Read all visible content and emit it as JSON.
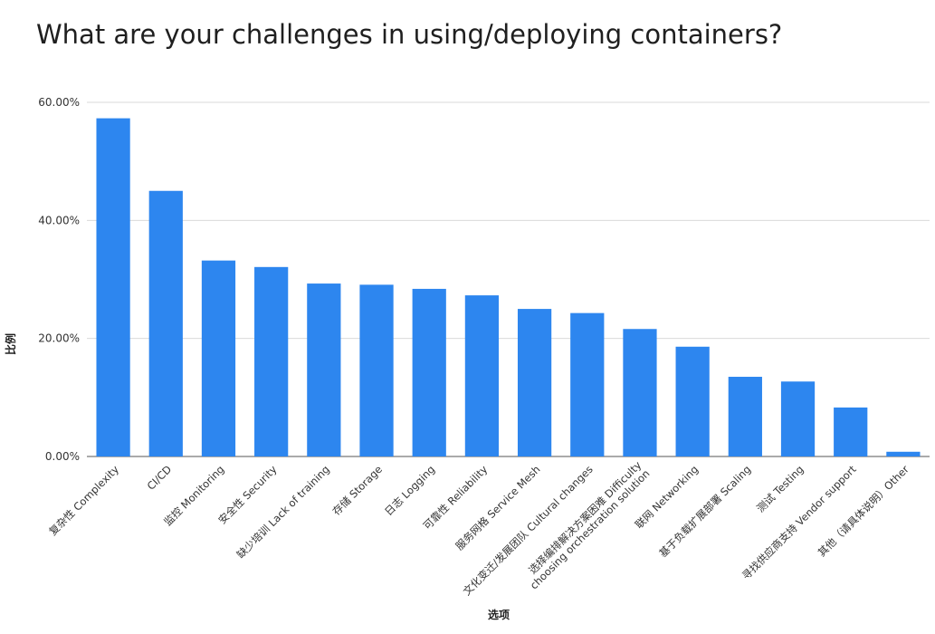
{
  "chart_data": {
    "type": "bar",
    "title": "What are your challenges in using/deploying containers?",
    "xlabel": "选项",
    "ylabel": "比例",
    "ylim": [
      0,
      60
    ],
    "yticks": [
      "0.00%",
      "20.00%",
      "40.00%",
      "60.00%"
    ],
    "ytick_values": [
      0,
      20,
      40,
      60
    ],
    "grid": true,
    "legend": "none",
    "bar_color": "#2d86ef",
    "categories": [
      [
        "复杂性 Complexity"
      ],
      [
        "CI/CD"
      ],
      [
        "监控 Monitoring"
      ],
      [
        "安全性 Security"
      ],
      [
        "缺少培训 Lack of training"
      ],
      [
        "存储 Storage"
      ],
      [
        "日志 Logging"
      ],
      [
        "可靠性 Reliability"
      ],
      [
        "服务网格 Service Mesh"
      ],
      [
        "文化变迁/发展团队 Cultural changes"
      ],
      [
        "选择编排解决方案困难 Difficulty",
        "choosing orchestration solution"
      ],
      [
        "联网 Networking"
      ],
      [
        "基于负载扩展部署 Scaling"
      ],
      [
        "测试 Testing"
      ],
      [
        "寻找供应商支持 Vendor support"
      ],
      [
        "其他（请具体说明）Other"
      ]
    ],
    "values": [
      57.3,
      45.0,
      33.2,
      32.1,
      29.3,
      29.1,
      28.4,
      27.3,
      25.0,
      24.3,
      21.6,
      18.6,
      13.5,
      12.7,
      8.3,
      0.8
    ]
  }
}
